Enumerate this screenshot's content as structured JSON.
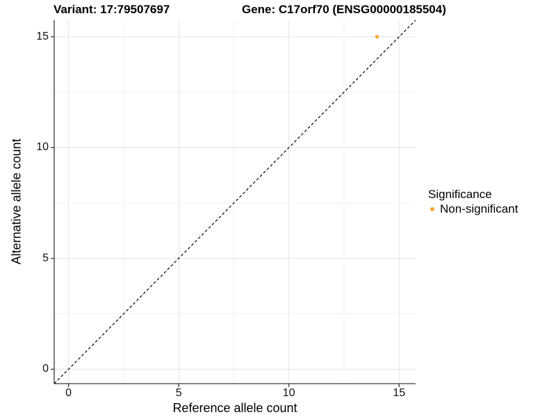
{
  "chart_data": {
    "type": "scatter",
    "title_left": "Variant: 17:79507697",
    "title_right": "Gene: C17orf70 (ENSG00000185504)",
    "xlabel": "Reference allele count",
    "ylabel": "Alternative allele count",
    "xlim": [
      -0.65,
      15.75
    ],
    "ylim": [
      -0.65,
      15.75
    ],
    "x_ticks": [
      0,
      5,
      10,
      15
    ],
    "y_ticks": [
      0,
      5,
      10,
      15
    ],
    "x_minor_ticks": [
      2.5,
      7.5,
      12.5
    ],
    "y_minor_ticks": [
      2.5,
      7.5,
      12.5
    ],
    "grid": true,
    "identity_line": {
      "style": "dashed",
      "x1": -0.65,
      "y1": -0.65,
      "x2": 15.75,
      "y2": 15.75
    },
    "series": [
      {
        "name": "Non-significant",
        "color": "#F9A43C",
        "points": [
          [
            14,
            15
          ]
        ]
      }
    ],
    "legend": {
      "title": "Significance",
      "position": "right",
      "entries": [
        {
          "label": "Non-significant",
          "color": "#F9A43C",
          "marker": "dot"
        }
      ]
    },
    "colors": {
      "point": "#F9A43C",
      "axis_line": "#3A3A3A",
      "tick_mark": "#2B2B2B",
      "grid_major": "#E4E4E4",
      "grid_minor": "#F2F2F2",
      "identity_line": "#000000",
      "background": "#FFFFFF"
    }
  }
}
